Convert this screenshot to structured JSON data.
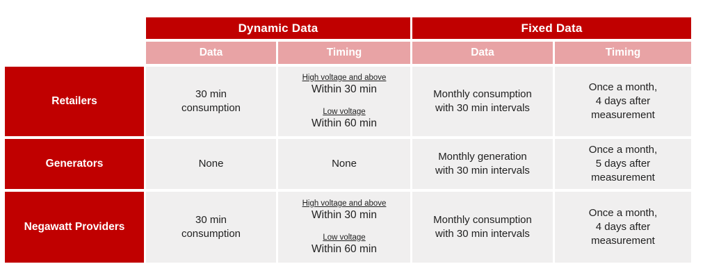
{
  "colors": {
    "header_red": "#c00000",
    "subheader_pink": "#e8a3a5",
    "cell_gray": "#f0efef",
    "header_text": "#ffffff",
    "body_text": "#1f1f1f"
  },
  "table": {
    "group_headers": [
      {
        "label": "Dynamic Data"
      },
      {
        "label": "Fixed Data"
      }
    ],
    "sub_headers": [
      {
        "label": "Data"
      },
      {
        "label": "Timing"
      },
      {
        "label": "Data"
      },
      {
        "label": "Timing"
      }
    ],
    "rows": [
      {
        "header": "Retailers",
        "dynamic_data": "30 min\nconsumption",
        "dynamic_timing": {
          "segments": [
            {
              "label": "High voltage and above",
              "value": "Within 30 min"
            },
            {
              "label": "Low voltage",
              "value": "Within 60 min"
            }
          ]
        },
        "fixed_data": "Monthly consumption\nwith 30 min intervals",
        "fixed_timing": "Once a month,\n4 days after\nmeasurement"
      },
      {
        "header": "Generators",
        "dynamic_data": "None",
        "dynamic_timing": {
          "text": "None"
        },
        "fixed_data": "Monthly generation\nwith 30 min intervals",
        "fixed_timing": "Once a month,\n5 days after\nmeasurement"
      },
      {
        "header": "Negawatt Providers",
        "dynamic_data": "30 min\nconsumption",
        "dynamic_timing": {
          "segments": [
            {
              "label": "High voltage and above",
              "value": "Within 30 min"
            },
            {
              "label": "Low voltage",
              "value": "Within 60 min"
            }
          ]
        },
        "fixed_data": "Monthly consumption\nwith 30 min intervals",
        "fixed_timing": "Once a month,\n4 days after\nmeasurement"
      }
    ]
  }
}
